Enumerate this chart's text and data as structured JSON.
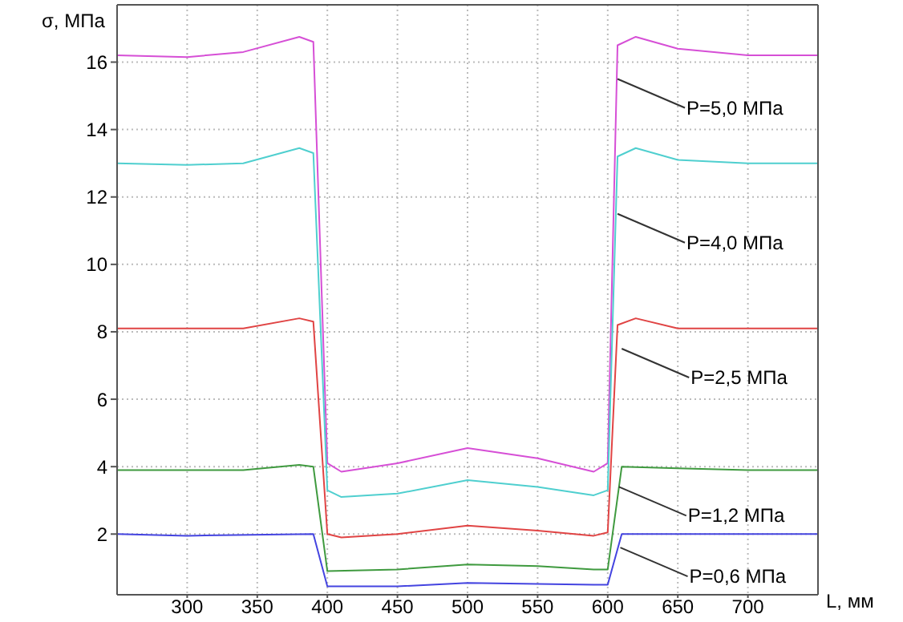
{
  "chart_data": {
    "type": "line",
    "xlabel": "L, мм",
    "ylabel": "σ, МПа",
    "xlim": [
      250,
      750
    ],
    "ylim": [
      0.2,
      17.7
    ],
    "xticks": [
      300,
      350,
      400,
      450,
      500,
      550,
      600,
      650,
      700
    ],
    "yticks": [
      2,
      4,
      6,
      8,
      10,
      12,
      14,
      16
    ],
    "grid": true,
    "marker": "none",
    "line_style": "solid",
    "series": [
      {
        "color": "#d64fd6",
        "x": [
          250,
          300,
          340,
          380,
          390,
          400,
          410,
          450,
          500,
          550,
          590,
          600,
          607,
          620,
          650,
          700,
          750
        ],
        "values": [
          16.2,
          16.15,
          16.3,
          16.75,
          16.6,
          4.1,
          3.85,
          4.1,
          4.55,
          4.25,
          3.85,
          4.1,
          16.5,
          16.75,
          16.4,
          16.2,
          16.2
        ]
      },
      {
        "color": "#4fcfcf",
        "x": [
          250,
          300,
          340,
          380,
          390,
          400,
          410,
          450,
          500,
          550,
          590,
          600,
          607,
          620,
          650,
          700,
          750
        ],
        "values": [
          13.0,
          12.95,
          13.0,
          13.45,
          13.3,
          3.3,
          3.1,
          3.2,
          3.6,
          3.4,
          3.15,
          3.3,
          13.2,
          13.45,
          13.1,
          13.0,
          13.0
        ]
      },
      {
        "color": "#e04444",
        "x": [
          250,
          300,
          340,
          380,
          390,
          400,
          410,
          450,
          500,
          550,
          590,
          600,
          607,
          620,
          650,
          700,
          750
        ],
        "values": [
          8.1,
          8.1,
          8.1,
          8.4,
          8.3,
          2.0,
          1.9,
          2.0,
          2.25,
          2.1,
          1.95,
          2.05,
          8.2,
          8.4,
          8.1,
          8.1,
          8.1
        ]
      },
      {
        "color": "#3f9a3f",
        "x": [
          250,
          300,
          340,
          380,
          390,
          400,
          450,
          500,
          550,
          590,
          600,
          610,
          650,
          700,
          750
        ],
        "values": [
          3.9,
          3.9,
          3.9,
          4.05,
          4.0,
          0.9,
          0.95,
          1.1,
          1.05,
          0.95,
          0.95,
          4.0,
          3.95,
          3.9,
          3.9
        ]
      },
      {
        "color": "#4444e0",
        "x": [
          250,
          300,
          390,
          400,
          450,
          500,
          590,
          600,
          610,
          700,
          750
        ],
        "values": [
          2.0,
          1.95,
          2.0,
          0.45,
          0.45,
          0.55,
          0.5,
          0.5,
          2.0,
          2.0,
          2.0
        ]
      }
    ],
    "annotations": [
      {
        "text": "P=5,0 МПа",
        "x": 607,
        "y": 15.5
      },
      {
        "text": "P=4,0 МПа",
        "x": 607,
        "y": 11.5
      },
      {
        "text": "P=2,5 МПа",
        "x": 610,
        "y": 7.5
      },
      {
        "text": "P=1,2 МПа",
        "x": 608,
        "y": 3.4
      },
      {
        "text": "P=0,6 МПа",
        "x": 609,
        "y": 1.6
      }
    ]
  }
}
